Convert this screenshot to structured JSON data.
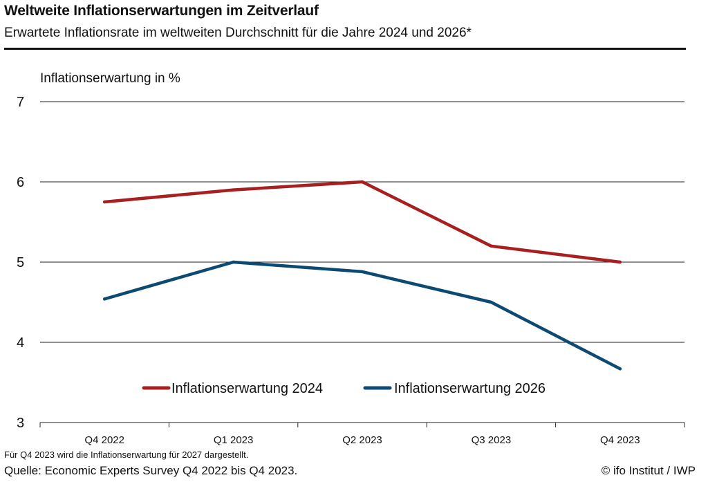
{
  "header": {
    "title": "Weltweite Inflationserwartungen im Zeitverlauf",
    "subtitle": "Erwartete Inflationsrate im weltweiten Durchschnitt für die Jahre 2024 und 2026*"
  },
  "footer": {
    "footnote": "Für Q4 2023 wird die Inflationserwartung  für 2027 dargestellt.",
    "source": "Quelle: Economic Experts Survey Q4 2022 bis Q4 2023.",
    "copyright": "© ifo Institut / IWP"
  },
  "chart_data": {
    "type": "line",
    "title": "Weltweite Inflationserwartungen im Zeitverlauf",
    "subtitle": "Erwartete Inflationsrate im weltweiten Durchschnitt für die Jahre 2024 und 2026*",
    "ylabel": "Inflationserwartung in %",
    "xlabel": "",
    "categories": [
      "Q4 2022",
      "Q1 2023",
      "Q2 2023",
      "Q3 2023",
      "Q4 2023"
    ],
    "ylim": [
      3,
      7
    ],
    "yticks": [
      3,
      4,
      5,
      6,
      7
    ],
    "grid": true,
    "legend_position": "bottom-center",
    "series": [
      {
        "name": "Inflationserwartung 2024",
        "color": "#a81f1f",
        "values": [
          5.75,
          5.9,
          6.0,
          5.2,
          5.0
        ]
      },
      {
        "name": "Inflationserwartung 2026",
        "color": "#0d4a73",
        "values": [
          4.54,
          5.0,
          4.88,
          4.5,
          3.67
        ]
      }
    ]
  }
}
